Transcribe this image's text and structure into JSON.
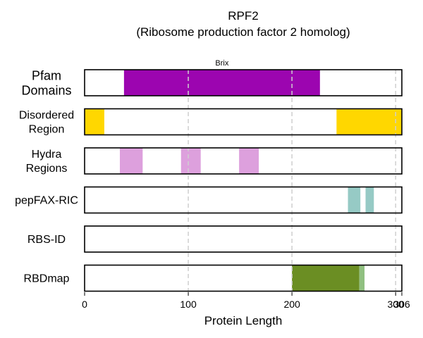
{
  "chart_data": {
    "type": "bar",
    "title": "RPF2",
    "subtitle": "(Ribosome production factor 2 homolog)",
    "xlabel": "Protein Length",
    "xlim": [
      0,
      306
    ],
    "x_ticks": [
      0,
      100,
      200,
      300,
      306
    ],
    "x_tick_labels": [
      "0",
      "100",
      "200",
      "300",
      "306"
    ],
    "gridlines_at": [
      100,
      200,
      300
    ],
    "grid": "vertical dashed",
    "tracks": [
      {
        "label": "Pfam\nDomains",
        "segments": [
          {
            "start": 38,
            "end": 227,
            "color": "#9c05b0",
            "label": "Brix"
          }
        ]
      },
      {
        "label": "Disordered\nRegion",
        "segments": [
          {
            "start": 0,
            "end": 19,
            "color": "#ffd700"
          },
          {
            "start": 243,
            "end": 306,
            "color": "#ffd700"
          }
        ]
      },
      {
        "label": "Hydra\nRegions",
        "segments": [
          {
            "start": 34,
            "end": 56,
            "color": "#dda0dd"
          },
          {
            "start": 93,
            "end": 112,
            "color": "#dda0dd"
          },
          {
            "start": 149,
            "end": 168,
            "color": "#dda0dd"
          }
        ]
      },
      {
        "label": "pepFAX-RIC",
        "segments": [
          {
            "start": 254,
            "end": 266,
            "color": "#96cac5"
          },
          {
            "start": 271,
            "end": 279,
            "color": "#96cac5"
          }
        ]
      },
      {
        "label": "RBS-ID",
        "segments": []
      },
      {
        "label": "RBDmap",
        "segments": [
          {
            "start": 200,
            "end": 265,
            "color": "#6b8e23"
          },
          {
            "start": 265,
            "end": 270,
            "color": "#90c080"
          }
        ]
      }
    ]
  }
}
